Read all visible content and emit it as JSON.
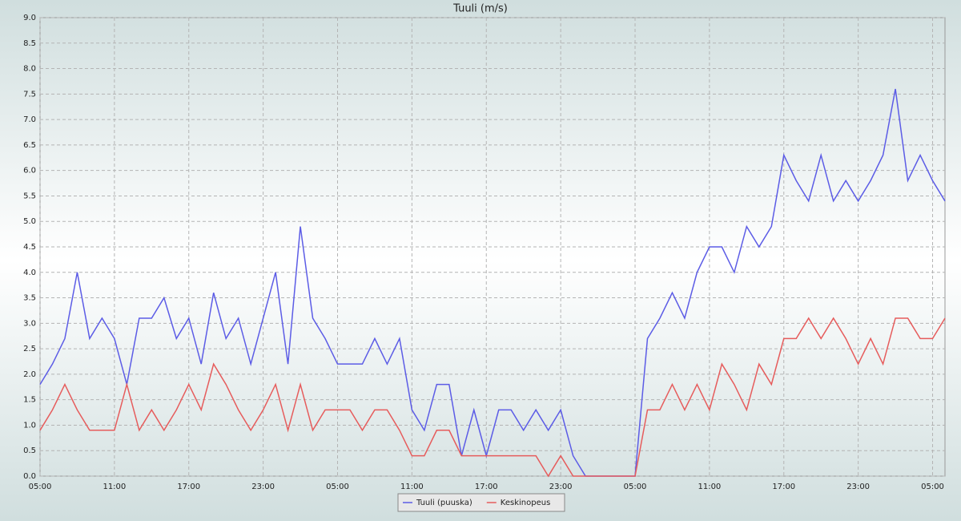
{
  "chart_data": {
    "type": "line",
    "title": "Tuuli (m/s)",
    "x": [
      0,
      1,
      2,
      3,
      4,
      5,
      6,
      7,
      8,
      9,
      10,
      11,
      12,
      13,
      14,
      15,
      16,
      17,
      18,
      19,
      20,
      21,
      22,
      23,
      24,
      25,
      26,
      27,
      28,
      29,
      30,
      31,
      32,
      33,
      34,
      35,
      36,
      37,
      38,
      39,
      40,
      41,
      42,
      43,
      44,
      45,
      46,
      47,
      48,
      49,
      50,
      51,
      52,
      53,
      54,
      55,
      56,
      57,
      58,
      59,
      60,
      61,
      62,
      63,
      64,
      65,
      66,
      67,
      68,
      69,
      70,
      71,
      72,
      73
    ],
    "series": [
      {
        "name": "Tuuli (puuska)",
        "color": "#5c5ce6",
        "values": [
          1.8,
          2.2,
          2.7,
          4.0,
          2.7,
          3.1,
          2.7,
          1.8,
          3.1,
          3.1,
          3.5,
          2.7,
          3.1,
          2.2,
          3.6,
          2.7,
          3.1,
          2.2,
          3.1,
          4.0,
          2.2,
          4.9,
          3.1,
          2.7,
          2.2,
          2.2,
          2.2,
          2.7,
          2.2,
          2.7,
          1.3,
          0.9,
          1.8,
          1.8,
          0.4,
          1.3,
          0.4,
          1.3,
          1.3,
          0.9,
          1.3,
          0.9,
          1.3,
          0.4,
          0,
          0,
          0,
          0,
          0,
          2.7,
          3.1,
          3.6,
          3.1,
          4.0,
          4.5,
          4.5,
          4.0,
          4.9,
          4.5,
          4.9,
          6.3,
          5.8,
          5.4,
          6.3,
          5.4,
          5.8,
          5.4,
          5.8,
          6.3,
          7.6,
          5.8,
          6.3,
          5.8,
          5.4
        ]
      },
      {
        "name": "Keskinopeus",
        "color": "#e65c5c",
        "values": [
          0.9,
          1.3,
          1.8,
          1.3,
          0.9,
          0.9,
          0.9,
          1.8,
          0.9,
          1.3,
          0.9,
          1.3,
          1.8,
          1.3,
          2.2,
          1.8,
          1.3,
          0.9,
          1.3,
          1.8,
          0.9,
          1.8,
          0.9,
          1.3,
          1.3,
          1.3,
          0.9,
          1.3,
          1.3,
          0.9,
          0.4,
          0.4,
          0.9,
          0.9,
          0.4,
          0.4,
          0.4,
          0.4,
          0.4,
          0.4,
          0.4,
          0,
          0.4,
          0,
          0,
          0,
          0,
          0,
          0,
          1.3,
          1.3,
          1.8,
          1.3,
          1.8,
          1.3,
          2.2,
          1.8,
          1.3,
          2.2,
          1.8,
          2.7,
          2.7,
          3.1,
          2.7,
          3.1,
          2.7,
          2.2,
          2.7,
          2.2,
          3.1,
          3.1,
          2.7,
          2.7,
          3.1
        ]
      }
    ],
    "xlim": [
      0,
      73
    ],
    "xticks": [
      {
        "value": 0,
        "label": "05:00"
      },
      {
        "value": 6,
        "label": "11:00"
      },
      {
        "value": 12,
        "label": "17:00"
      },
      {
        "value": 18,
        "label": "23:00"
      },
      {
        "value": 24,
        "label": "05:00"
      },
      {
        "value": 30,
        "label": "11:00"
      },
      {
        "value": 36,
        "label": "17:00"
      },
      {
        "value": 42,
        "label": "23:00"
      },
      {
        "value": 48,
        "label": "05:00"
      },
      {
        "value": 54,
        "label": "11:00"
      },
      {
        "value": 60,
        "label": "17:00"
      },
      {
        "value": 66,
        "label": "23:00"
      },
      {
        "value": 72,
        "label": "05:00"
      }
    ],
    "ylim": [
      0,
      9
    ],
    "yticks": [
      {
        "value": 0,
        "label": "0.0"
      },
      {
        "value": 0.5,
        "label": "0.5"
      },
      {
        "value": 1,
        "label": "1.0"
      },
      {
        "value": 1.5,
        "label": "1.5"
      },
      {
        "value": 2,
        "label": "2.0"
      },
      {
        "value": 2.5,
        "label": "2.5"
      },
      {
        "value": 3,
        "label": "3.0"
      },
      {
        "value": 3.5,
        "label": "3.5"
      },
      {
        "value": 4,
        "label": "4.0"
      },
      {
        "value": 4.5,
        "label": "4.5"
      },
      {
        "value": 5,
        "label": "5.0"
      },
      {
        "value": 5.5,
        "label": "5.5"
      },
      {
        "value": 6,
        "label": "6.0"
      },
      {
        "value": 6.5,
        "label": "6.5"
      },
      {
        "value": 7,
        "label": "7.0"
      },
      {
        "value": 7.5,
        "label": "7.5"
      },
      {
        "value": 8,
        "label": "8.0"
      },
      {
        "value": 8.5,
        "label": "8.5"
      },
      {
        "value": 9,
        "label": "9.0"
      }
    ],
    "grid": true,
    "legend": "bottom"
  }
}
